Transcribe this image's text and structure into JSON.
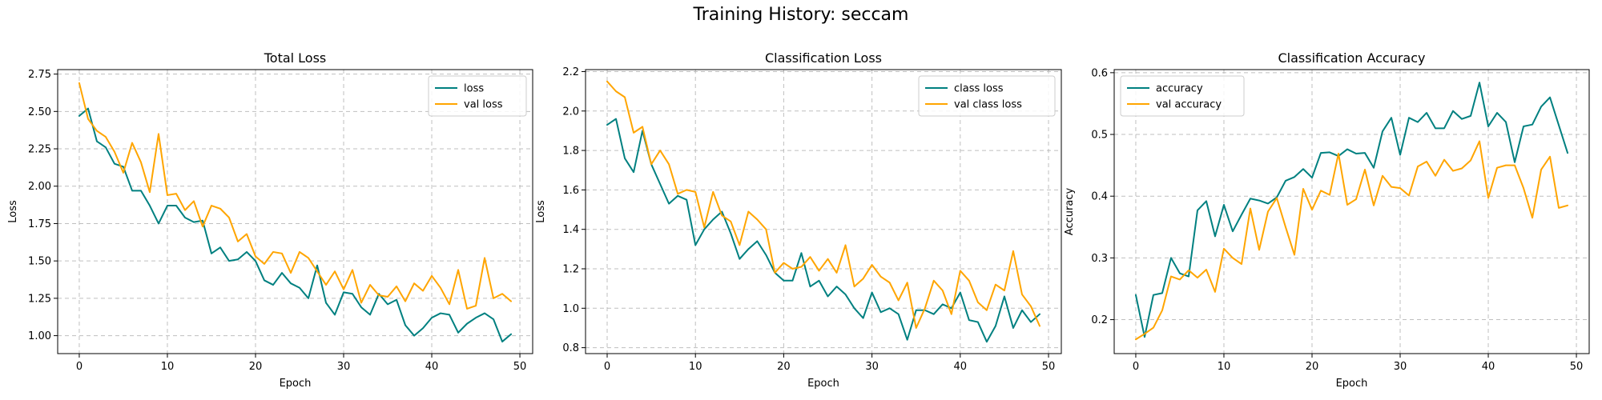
{
  "figure": {
    "title": "Training History: seccam"
  },
  "colors": {
    "train": "#008080",
    "val": "#FFA500",
    "grid": "#b0b0b0"
  },
  "chart_data": [
    {
      "type": "line",
      "title": "Total Loss",
      "xlabel": "Epoch",
      "ylabel": "Loss",
      "xlim": [
        -2.45,
        51.45
      ],
      "ylim": [
        0.88,
        2.78
      ],
      "xticks": [
        "0",
        "10",
        "20",
        "30",
        "40",
        "50"
      ],
      "yticks": [
        "1.00",
        "1.25",
        "1.50",
        "1.75",
        "2.00",
        "2.25",
        "2.50",
        "2.75"
      ],
      "legend": "top-right",
      "grid": true,
      "series": [
        {
          "name": "loss",
          "color": "#008080",
          "values": [
            2.47,
            2.52,
            2.3,
            2.26,
            2.15,
            2.13,
            1.97,
            1.97,
            1.87,
            1.75,
            1.87,
            1.87,
            1.79,
            1.76,
            1.77,
            1.55,
            1.59,
            1.5,
            1.51,
            1.56,
            1.5,
            1.37,
            1.34,
            1.42,
            1.35,
            1.32,
            1.25,
            1.47,
            1.22,
            1.14,
            1.29,
            1.28,
            1.19,
            1.14,
            1.28,
            1.21,
            1.24,
            1.07,
            1.0,
            1.05,
            1.12,
            1.15,
            1.14,
            1.02,
            1.08,
            1.12,
            1.15,
            1.11,
            0.96,
            1.01
          ]
        },
        {
          "name": "val loss",
          "color": "#FFA500",
          "values": [
            2.69,
            2.45,
            2.37,
            2.33,
            2.23,
            2.09,
            2.29,
            2.16,
            1.96,
            2.35,
            1.94,
            1.95,
            1.84,
            1.9,
            1.73,
            1.87,
            1.85,
            1.79,
            1.63,
            1.68,
            1.53,
            1.48,
            1.56,
            1.55,
            1.42,
            1.56,
            1.52,
            1.43,
            1.34,
            1.43,
            1.31,
            1.44,
            1.22,
            1.34,
            1.27,
            1.26,
            1.33,
            1.23,
            1.35,
            1.3,
            1.4,
            1.32,
            1.21,
            1.44,
            1.18,
            1.2,
            1.52,
            1.25,
            1.28,
            1.23
          ]
        }
      ]
    },
    {
      "type": "line",
      "title": "Classification Loss",
      "xlabel": "Epoch",
      "ylabel": "Loss",
      "xlim": [
        -2.45,
        51.45
      ],
      "ylim": [
        0.77,
        2.21
      ],
      "xticks": [
        "0",
        "10",
        "20",
        "30",
        "40",
        "50"
      ],
      "yticks": [
        "0.8",
        "1.0",
        "1.2",
        "1.4",
        "1.6",
        "1.8",
        "2.0",
        "2.2"
      ],
      "legend": "top-right",
      "grid": true,
      "series": [
        {
          "name": "class loss",
          "color": "#008080",
          "values": [
            1.93,
            1.96,
            1.76,
            1.69,
            1.9,
            1.73,
            1.63,
            1.53,
            1.57,
            1.55,
            1.32,
            1.4,
            1.45,
            1.49,
            1.38,
            1.25,
            1.3,
            1.34,
            1.27,
            1.18,
            1.14,
            1.14,
            1.28,
            1.11,
            1.14,
            1.06,
            1.11,
            1.07,
            1.0,
            0.95,
            1.08,
            0.98,
            1.0,
            0.97,
            0.84,
            0.99,
            0.99,
            0.97,
            1.02,
            1.0,
            1.08,
            0.94,
            0.93,
            0.83,
            0.91,
            1.06,
            0.9,
            0.99,
            0.93,
            0.97
          ]
        },
        {
          "name": "val class loss",
          "color": "#FFA500",
          "values": [
            2.15,
            2.1,
            2.07,
            1.89,
            1.92,
            1.73,
            1.8,
            1.73,
            1.58,
            1.6,
            1.59,
            1.41,
            1.59,
            1.47,
            1.44,
            1.32,
            1.49,
            1.45,
            1.4,
            1.18,
            1.23,
            1.2,
            1.21,
            1.26,
            1.19,
            1.25,
            1.18,
            1.32,
            1.11,
            1.15,
            1.22,
            1.16,
            1.13,
            1.04,
            1.13,
            0.9,
            1.0,
            1.14,
            1.09,
            0.97,
            1.19,
            1.14,
            1.03,
            0.99,
            1.12,
            1.09,
            1.29,
            1.07,
            1.01,
            0.91
          ]
        }
      ]
    },
    {
      "type": "line",
      "title": "Classification Accuracy",
      "xlabel": "Epoch",
      "ylabel": "Accuracy",
      "xlim": [
        -2.45,
        51.45
      ],
      "ylim": [
        0.145,
        0.605
      ],
      "xticks": [
        "0",
        "10",
        "20",
        "30",
        "40",
        "50"
      ],
      "yticks": [
        "0.2",
        "0.3",
        "0.4",
        "0.5",
        "0.6"
      ],
      "legend": "top-left",
      "grid": true,
      "series": [
        {
          "name": "accuracy",
          "color": "#008080",
          "values": [
            0.24,
            0.172,
            0.24,
            0.243,
            0.3,
            0.275,
            0.27,
            0.377,
            0.392,
            0.335,
            0.386,
            0.343,
            0.37,
            0.396,
            0.393,
            0.388,
            0.398,
            0.425,
            0.431,
            0.444,
            0.43,
            0.47,
            0.471,
            0.465,
            0.476,
            0.469,
            0.47,
            0.446,
            0.505,
            0.527,
            0.467,
            0.527,
            0.52,
            0.535,
            0.51,
            0.51,
            0.538,
            0.525,
            0.53,
            0.584,
            0.513,
            0.535,
            0.52,
            0.455,
            0.513,
            0.516,
            0.545,
            0.56,
            0.515,
            0.47
          ]
        },
        {
          "name": "val accuracy",
          "color": "#FFA500",
          "values": [
            0.168,
            0.177,
            0.187,
            0.215,
            0.27,
            0.265,
            0.28,
            0.268,
            0.281,
            0.245,
            0.315,
            0.3,
            0.29,
            0.38,
            0.313,
            0.375,
            0.397,
            0.35,
            0.305,
            0.412,
            0.378,
            0.409,
            0.402,
            0.469,
            0.386,
            0.395,
            0.443,
            0.385,
            0.433,
            0.415,
            0.413,
            0.401,
            0.448,
            0.456,
            0.433,
            0.459,
            0.441,
            0.445,
            0.458,
            0.489,
            0.397,
            0.446,
            0.45,
            0.45,
            0.413,
            0.365,
            0.443,
            0.464,
            0.381,
            0.385
          ]
        }
      ]
    }
  ]
}
